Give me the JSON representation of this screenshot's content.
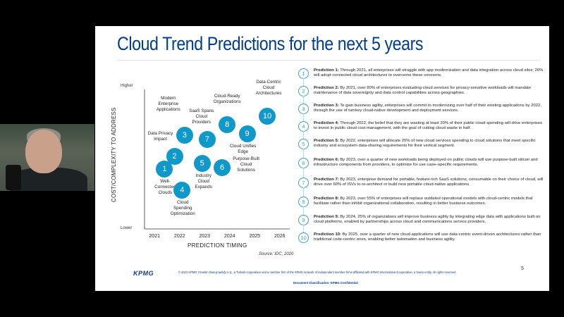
{
  "slide": {
    "title": "Cloud Trend Predictions for the next 5 years",
    "page_number": "5",
    "footer_logo": "KPMG",
    "footer_text": "© 2021 KPMG Yönetim Danışmanlığı A.Ş., a Turkish corporation and a member firm of the KPMG network of independent member firms affiliated with KPMG International Cooperative, a Swiss entity. All rights reserved.",
    "classification": "Document Classification: KPMG Confidential"
  },
  "chart": {
    "ylabel": "COST/COMPLEXITY TO ADDRESS",
    "xlabel": "PREDICTION TIMING",
    "y_high": "Higher",
    "y_low": "Lower",
    "source": "Source: IDC, 2020",
    "accent": "#0f98c8"
  },
  "chart_data": {
    "type": "scatter",
    "xlabel": "PREDICTION TIMING",
    "ylabel": "COST/COMPLEXITY TO ADDRESS",
    "x_ticks": [
      "2021",
      "2022",
      "2023",
      "2024",
      "2025",
      "2026"
    ],
    "y_ticks": [
      "Lower",
      "Higher"
    ],
    "points": [
      {
        "id": "1",
        "label": "Well-Connected Clouds",
        "x": 2021.4,
        "y": 0.43
      },
      {
        "id": "2",
        "label": "Data Privacy Impact",
        "x": 2021.8,
        "y": 0.52
      },
      {
        "id": "3",
        "label": "Modern Enterprise Applications",
        "x": 2022.2,
        "y": 0.67
      },
      {
        "id": "4",
        "label": "Cloud Spending Optimization",
        "x": 2022.1,
        "y": 0.28
      },
      {
        "id": "5",
        "label": "Industry Cloud Expands",
        "x": 2022.9,
        "y": 0.47
      },
      {
        "id": "6",
        "label": "Purpose-Built Cloud Solutions",
        "x": 2023.7,
        "y": 0.44
      },
      {
        "id": "7",
        "label": "SaaS Spans Cloud Providers",
        "x": 2023.1,
        "y": 0.64
      },
      {
        "id": "8",
        "label": "Cloud-Ready Organizations",
        "x": 2023.9,
        "y": 0.75
      },
      {
        "id": "9",
        "label": "Cloud Unifies Edge",
        "x": 2024.7,
        "y": 0.68
      },
      {
        "id": "10",
        "label": "Data-Centric Cloud Architectures",
        "x": 2025.5,
        "y": 0.81
      }
    ]
  },
  "predictions": [
    {
      "num": "1",
      "title": "Prediction 1:",
      "text": "Through 2021, all enterprises will struggle with app modernization and data integration across cloud silos; 20% will adopt connected cloud architectures to overcome these concerns."
    },
    {
      "num": "2",
      "title": "Prediction 2:",
      "text": "By 2021, over 80% of enterprises evaluating cloud services for privacy-sensitive workloads will mandate maintenance of data sovereignty and data control capabilities across geographies."
    },
    {
      "num": "3",
      "title": "Prediction 3:",
      "text": "To gain business agility, enterprises will commit to modernizing over half of their existing applications by 2022, through the use of turnkey cloud-native development and deployment services."
    },
    {
      "num": "4",
      "title": "Prediction 4:",
      "text": "Through 2022, the belief that they are wasting at least 20% of their public cloud spending will drive enterprises to invest in public cloud cost management, with the goal of cutting cloud waste in half."
    },
    {
      "num": "5",
      "title": "Prediction 5:",
      "text": "By 2022, enterprises will allocate 20% of new cloud services spending to cloud solutions that meet specific industry and ecosystem data-sharing requirements for their vertical segment."
    },
    {
      "num": "6",
      "title": "Prediction 6:",
      "text": "By 2023, over a quarter of new workloads being deployed on public clouds will use purpose-built silicon and infrastructure components from providers, to optimize for use case–specific requirements."
    },
    {
      "num": "7",
      "title": "Prediction 7:",
      "text": "By 2023, enterprise demand for portable, feature-rich SaaS solutions, consumable on their choice of cloud, will drive over 60% of ISVs to re-architect or build new portable cloud-native applications."
    },
    {
      "num": "8",
      "title": "Prediction 8:",
      "text": "By 2023, over 55% of enterprises will replace outdated operational models with cloud-centric models that facilitate rather than inhibit organizational collaboration, resulting in better business outcomes."
    },
    {
      "num": "9",
      "title": "Prediction 9:",
      "text": "By 2024, 25% of organizations will improve business agility by integrating edge data with applications built on cloud platforms, enabled by partnerships across cloud and communications service providers."
    },
    {
      "num": "10",
      "title": "Prediction 10:",
      "text": "By 2025, over a quarter of new cloud applications will use data-centric event-driven architectures rather than traditional code-centric ones, enabling better automation and business agility."
    }
  ]
}
